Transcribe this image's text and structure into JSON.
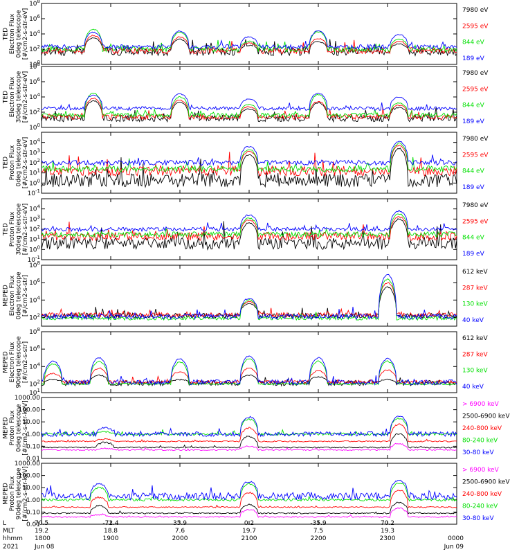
{
  "colors": {
    "black": "#000000",
    "blue": "#0000ff",
    "green": "#00e000",
    "red": "#ff0000",
    "magenta": "#ff00ff",
    "background": "#ffffff"
  },
  "x_axis": {
    "rows": [
      {
        "label": "L",
        "values": [
          "70.5",
          "-72.4",
          "35.9",
          "0.2",
          "-35.9",
          "70.2",
          ""
        ]
      },
      {
        "label": "MLT",
        "values": [
          "19.2",
          "18.8",
          "7.6",
          "19.7",
          "7.5",
          "19.3",
          ""
        ]
      },
      {
        "label": "hhmm",
        "values": [
          "1800",
          "1900",
          "2000",
          "2100",
          "2200",
          "2300",
          "0000"
        ]
      },
      {
        "label": "2021",
        "values": [
          "Jun 08",
          "",
          "",
          "",
          "",
          "",
          "Jun 09"
        ]
      }
    ]
  },
  "chart_data": [
    {
      "type": "line",
      "panel": 1,
      "ylabel": [
        "TED",
        "Electron Flux",
        "0deg telescope",
        "[#/cm2-s-str-eV]"
      ],
      "ylog": true,
      "ylim": [
        1,
        100000000
      ],
      "ytick_labels": [
        "10^0",
        "10^2",
        "10^4",
        "10^6",
        "10^8"
      ],
      "x_time_range": [
        "1800",
        "0000"
      ],
      "series": [
        {
          "name": "7980 eV",
          "color": "black",
          "base_log": 1.7,
          "noise_log": 0.55
        },
        {
          "name": "2595 eV",
          "color": "red",
          "base_log": 1.8,
          "noise_log": 0.4
        },
        {
          "name": "844 eV",
          "color": "green",
          "base_log": 2.0,
          "noise_log": 0.35
        },
        {
          "name": "189 eV",
          "color": "blue",
          "base_log": 2.3,
          "noise_log": 0.3
        }
      ],
      "events_hhmm": [
        {
          "center": "1845",
          "peak_log": [
            3.5,
            3.8,
            4.6,
            4.2
          ]
        },
        {
          "center": "2000",
          "peak_log": [
            3.3,
            3.6,
            4.2,
            4.4
          ]
        },
        {
          "center": "2100",
          "peak_log": [
            2.5,
            2.8,
            3.0,
            3.6
          ]
        },
        {
          "center": "2200",
          "peak_log": [
            3.0,
            3.4,
            4.3,
            4.4
          ]
        },
        {
          "center": "2310",
          "peak_log": [
            2.7,
            3.0,
            3.3,
            3.9
          ]
        }
      ]
    },
    {
      "type": "line",
      "panel": 2,
      "ylabel": [
        "TED",
        "Electron Flux",
        "30deg telescope",
        "[#/cm2-s-str-eV]"
      ],
      "ylog": true,
      "ylim": [
        1,
        100000000
      ],
      "ytick_labels": [
        "10^0",
        "10^2",
        "10^4",
        "10^6",
        "10^8"
      ],
      "x_time_range": [
        "1800",
        "0000"
      ],
      "series": [
        {
          "name": "7980 eV",
          "color": "black",
          "base_log": 1.2,
          "noise_log": 0.45
        },
        {
          "name": "2595 eV",
          "color": "red",
          "base_log": 1.4,
          "noise_log": 0.35
        },
        {
          "name": "844 eV",
          "color": "green",
          "base_log": 1.6,
          "noise_log": 0.3
        },
        {
          "name": "189 eV",
          "color": "blue",
          "base_log": 2.5,
          "noise_log": 0.25
        }
      ],
      "events_hhmm": [
        {
          "center": "1845",
          "peak_log": [
            3.5,
            3.8,
            4.5,
            4.2
          ]
        },
        {
          "center": "2000",
          "peak_log": [
            3.3,
            3.6,
            4.0,
            4.4
          ]
        },
        {
          "center": "2100",
          "peak_log": [
            2.4,
            2.7,
            3.0,
            3.7
          ]
        },
        {
          "center": "2200",
          "peak_log": [
            3.2,
            3.4,
            4.3,
            4.5
          ]
        },
        {
          "center": "2310",
          "peak_log": [
            2.6,
            2.9,
            3.2,
            4.0
          ]
        }
      ]
    },
    {
      "type": "line",
      "panel": 3,
      "ylabel": [
        "TED",
        "Proton Flux",
        "0deg telescope",
        "[#/cm2-s-str-eV]"
      ],
      "ylog": true,
      "ylim": [
        0.1,
        100000
      ],
      "ytick_labels": [
        "10^-1",
        "10^0",
        "10^1",
        "10^2",
        "10^3",
        "10^4"
      ],
      "x_time_range": [
        "1800",
        "0000"
      ],
      "series": [
        {
          "name": "7980 eV",
          "color": "black",
          "base_log": 0.3,
          "noise_log": 0.7
        },
        {
          "name": "2595 eV",
          "color": "red",
          "base_log": 1.2,
          "noise_log": 0.5
        },
        {
          "name": "844 eV",
          "color": "green",
          "base_log": 1.4,
          "noise_log": 0.3
        },
        {
          "name": "189 eV",
          "color": "blue",
          "base_log": 2.0,
          "noise_log": 0.25
        }
      ],
      "events_hhmm": [
        {
          "center": "2100",
          "peak_log": [
            2.8,
            3.1,
            3.3,
            3.6
          ]
        },
        {
          "center": "2310",
          "peak_log": [
            3.4,
            3.7,
            3.9,
            4.1
          ]
        }
      ]
    },
    {
      "type": "line",
      "panel": 4,
      "ylabel": [
        "TED",
        "Proton Flux",
        "30deg telescope",
        "[#/cm2-s-str-eV]"
      ],
      "ylog": true,
      "ylim": [
        0.1,
        100000
      ],
      "ytick_labels": [
        "10^-1",
        "10^0",
        "10^1",
        "10^2",
        "10^3",
        "10^4"
      ],
      "x_time_range": [
        "1800",
        "0000"
      ],
      "series": [
        {
          "name": "7980 eV",
          "color": "black",
          "base_log": 0.6,
          "noise_log": 0.6
        },
        {
          "name": "2595 eV",
          "color": "red",
          "base_log": 1.3,
          "noise_log": 0.4
        },
        {
          "name": "844 eV",
          "color": "green",
          "base_log": 1.5,
          "noise_log": 0.25
        },
        {
          "name": "189 eV",
          "color": "blue",
          "base_log": 2.0,
          "noise_log": 0.2
        }
      ],
      "events_hhmm": [
        {
          "center": "2100",
          "peak_log": [
            2.6,
            2.9,
            3.1,
            3.4
          ]
        },
        {
          "center": "2310",
          "peak_log": [
            3.0,
            3.2,
            3.5,
            3.8
          ]
        }
      ]
    },
    {
      "type": "line",
      "panel": 5,
      "ylabel": [
        "MEPED",
        "Electron Flux",
        "0deg telescope",
        "[#/cm2-s-str]"
      ],
      "ylog": true,
      "ylim": [
        10,
        100000000
      ],
      "ytick_labels": [
        "10^2",
        "10^4",
        "10^6",
        "10^8"
      ],
      "x_time_range": [
        "1800",
        "0000"
      ],
      "series": [
        {
          "name": "612 keV",
          "color": "black",
          "base_log": 2.2,
          "noise_log": 0.3
        },
        {
          "name": "287 keV",
          "color": "red",
          "base_log": 2.3,
          "noise_log": 0.25
        },
        {
          "name": "130 keV",
          "color": "green",
          "base_log": 1.9,
          "noise_log": 0.2
        },
        {
          "name": "40 keV",
          "color": "blue",
          "base_log": 2.1,
          "noise_log": 0.3
        }
      ],
      "events_hhmm": [
        {
          "center": "2100",
          "peak_log": [
            3.6,
            3.8,
            4.0,
            4.2
          ]
        },
        {
          "center": "2300",
          "peak_log": [
            5.5,
            6.0,
            6.4,
            6.9
          ]
        }
      ]
    },
    {
      "type": "line",
      "panel": 6,
      "ylabel": [
        "MEPED",
        "Electron Flux",
        "90deg telescope",
        "[#/cm2-s-str]"
      ],
      "ylog": true,
      "ylim": [
        10,
        100000000
      ],
      "ytick_labels": [
        "10^1",
        "10^2",
        "10^4",
        "10^6",
        "10^8"
      ],
      "x_time_range": [
        "1800",
        "0000"
      ],
      "series": [
        {
          "name": "612 keV",
          "color": "black",
          "base_log": 2.1,
          "noise_log": 0.3
        },
        {
          "name": "287 keV",
          "color": "red",
          "base_log": 2.2,
          "noise_log": 0.2
        },
        {
          "name": "130 keV",
          "color": "green",
          "base_log": 2.0,
          "noise_log": 0.1
        },
        {
          "name": "40 keV",
          "color": "blue",
          "base_log": 2.2,
          "noise_log": 0.3
        }
      ],
      "events_hhmm": [
        {
          "center": "1810",
          "peak_log": [
            2.5,
            3.2,
            4.3,
            4.6
          ]
        },
        {
          "center": "1850",
          "peak_log": [
            3.0,
            3.8,
            4.6,
            5.0
          ]
        },
        {
          "center": "2000",
          "peak_log": [
            2.5,
            3.4,
            4.5,
            4.9
          ]
        },
        {
          "center": "2100",
          "peak_log": [
            3.0,
            3.8,
            4.9,
            5.2
          ]
        },
        {
          "center": "2200",
          "peak_log": [
            2.8,
            3.5,
            4.6,
            5.0
          ]
        },
        {
          "center": "2300",
          "peak_log": [
            2.5,
            3.6,
            4.6,
            4.9
          ]
        }
      ]
    },
    {
      "type": "line",
      "panel": 7,
      "ylabel": [
        "MEPED",
        "Proton Flux",
        "0deg telescope",
        "[#/cm2-s-str-keV]"
      ],
      "ylog": true,
      "ylim": [
        0.01,
        1000
      ],
      "ytick_labels": [
        "0.01",
        "0.10",
        "1.00",
        "10.00",
        "100.00",
        "1000.00"
      ],
      "x_time_range": [
        "1800",
        "0000"
      ],
      "series": [
        {
          "name": "> 6900 keV",
          "color": "magenta",
          "base_log": -1.3,
          "noise_log": 0.05
        },
        {
          "name": "2500-6900 keV",
          "color": "black",
          "base_log": -1.1,
          "noise_log": 0.05
        },
        {
          "name": "240-800 keV",
          "color": "red",
          "base_log": -0.6,
          "noise_log": 0.05
        },
        {
          "name": "80-240 keV",
          "color": "green",
          "base_log": 0.0,
          "noise_log": 0.1
        },
        {
          "name": "30-80 keV",
          "color": "blue",
          "base_log": 0.0,
          "noise_log": 0.2
        }
      ],
      "events_hhmm": [
        {
          "center": "1855",
          "peak_log": [
            -1.2,
            -0.7,
            -0.4,
            0.2,
            0.5
          ]
        },
        {
          "center": "2100",
          "peak_log": [
            -1.0,
            -0.2,
            0.5,
            1.2,
            1.4
          ]
        },
        {
          "center": "2310",
          "peak_log": [
            -0.8,
            0.0,
            0.8,
            1.3,
            1.5
          ]
        }
      ]
    },
    {
      "type": "line",
      "panel": 8,
      "ylabel": [
        "MEPED",
        "Proton Flux",
        "90deg telescope",
        "[#/cm2-s-str-keV]"
      ],
      "ylog": true,
      "ylim": [
        0.01,
        1000
      ],
      "ytick_labels": [
        "0.01",
        "0.10",
        "1.00",
        "10.00",
        "100.00",
        "1000.00"
      ],
      "x_time_range": [
        "1800",
        "0000"
      ],
      "series": [
        {
          "name": "> 6900 keV",
          "color": "magenta",
          "base_log": -1.4,
          "noise_log": 0.05
        },
        {
          "name": "2500-6900 keV",
          "color": "black",
          "base_log": -1.1,
          "noise_log": 0.05
        },
        {
          "name": "240-800 keV",
          "color": "red",
          "base_log": -0.6,
          "noise_log": 0.05
        },
        {
          "name": "80-240 keV",
          "color": "green",
          "base_log": 0.0,
          "noise_log": 0.1
        },
        {
          "name": "30-80 keV",
          "color": "blue",
          "base_log": 0.3,
          "noise_log": 0.3
        }
      ],
      "events_hhmm": [
        {
          "center": "1850",
          "peak_log": [
            -1.2,
            -0.5,
            0.2,
            1.0,
            1.3
          ]
        },
        {
          "center": "2100",
          "peak_log": [
            -0.8,
            -0.4,
            0.6,
            1.3,
            1.5
          ]
        },
        {
          "center": "2310",
          "peak_log": [
            -0.7,
            -0.2,
            0.8,
            1.4,
            1.6
          ]
        }
      ]
    }
  ]
}
